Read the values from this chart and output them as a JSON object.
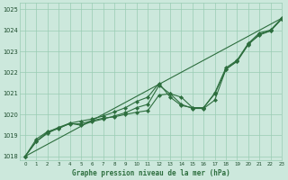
{
  "title": "Graphe pression niveau de la mer (hPa)",
  "background_color": "#cce8dc",
  "grid_color": "#99ccb3",
  "line_color": "#2d6e3e",
  "xlim": [
    -0.5,
    23
  ],
  "ylim": [
    1017.8,
    1025.3
  ],
  "xticks": [
    0,
    1,
    2,
    3,
    4,
    5,
    6,
    7,
    8,
    9,
    10,
    11,
    12,
    13,
    14,
    15,
    16,
    17,
    18,
    19,
    20,
    21,
    22,
    23
  ],
  "yticks": [
    1018,
    1019,
    1020,
    1021,
    1022,
    1023,
    1024,
    1025
  ],
  "series1_x": [
    0,
    1,
    2,
    3,
    4,
    5,
    6,
    7,
    8,
    9,
    10,
    11,
    12,
    13,
    14,
    15,
    16,
    17,
    18,
    19,
    20,
    21,
    22,
    23
  ],
  "series1_y": [
    1018.0,
    1018.7,
    1019.1,
    1019.35,
    1019.55,
    1019.55,
    1019.7,
    1019.82,
    1019.88,
    1020.0,
    1020.1,
    1020.18,
    1020.92,
    1020.98,
    1020.48,
    1020.28,
    1020.28,
    1020.68,
    1022.15,
    1022.55,
    1023.35,
    1023.78,
    1023.98,
    1024.55
  ],
  "series2_x": [
    0,
    1,
    2,
    3,
    4,
    5,
    6,
    7,
    8,
    9,
    10,
    11,
    12,
    13,
    14,
    15,
    16,
    17,
    18,
    19,
    20,
    21,
    22,
    23
  ],
  "series2_y": [
    1018.0,
    1018.72,
    1019.15,
    1019.38,
    1019.58,
    1019.48,
    1019.65,
    1019.78,
    1019.92,
    1020.08,
    1020.32,
    1020.48,
    1021.38,
    1020.98,
    1020.82,
    1020.32,
    1020.32,
    1020.98,
    1022.15,
    1022.52,
    1023.32,
    1023.82,
    1023.98,
    1024.55
  ],
  "series3_x": [
    0,
    1,
    2,
    3,
    4,
    5,
    6,
    7,
    8,
    9,
    10,
    11,
    12,
    13,
    14,
    15,
    16,
    17,
    18,
    19,
    20,
    21,
    22,
    23
  ],
  "series3_y": [
    1018.0,
    1018.82,
    1019.18,
    1019.32,
    1019.58,
    1019.68,
    1019.78,
    1019.92,
    1020.12,
    1020.32,
    1020.62,
    1020.82,
    1021.48,
    1020.82,
    1020.42,
    1020.32,
    1020.32,
    1021.02,
    1022.22,
    1022.58,
    1023.38,
    1023.88,
    1024.02,
    1024.58
  ],
  "trend_x": [
    0,
    23
  ],
  "trend_y": [
    1018.0,
    1024.58
  ],
  "marker": "D",
  "marker_size": 2.2,
  "linewidth": 0.8,
  "trend_linewidth": 0.8
}
